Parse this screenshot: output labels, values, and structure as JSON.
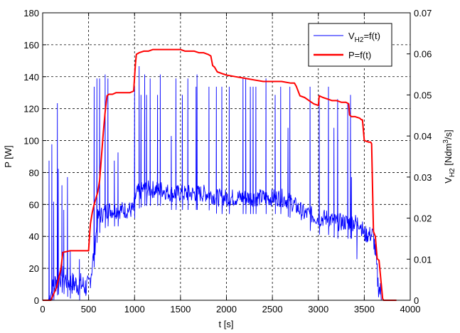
{
  "chart_data": {
    "type": "line",
    "title": "",
    "xlabel": "t [s]",
    "ylabel_left": "P [W]",
    "ylabel_right": {
      "prefix": "V",
      "sub": "H2",
      "mid": " [Ndm",
      "sup": "3",
      "suffix": "/s]"
    },
    "xlim": [
      0,
      4000
    ],
    "ylim_left": [
      0,
      180
    ],
    "ylim_right": [
      0,
      0.07
    ],
    "x_ticks": [
      "0",
      "500",
      "1000",
      "1500",
      "2000",
      "2500",
      "3000",
      "3500",
      "4000"
    ],
    "y_ticks_left": [
      "0",
      "20",
      "40",
      "60",
      "80",
      "100",
      "120",
      "140",
      "160",
      "180"
    ],
    "y_ticks_right": [
      "0",
      "0.01",
      "0.02",
      "0.03",
      "0.04",
      "0.05",
      "0.06",
      "0.07"
    ],
    "grid": true,
    "legend_position": "top-right",
    "legend": [
      {
        "label_main": "V",
        "label_sub": "H2",
        "label_tail": "=f(t)",
        "color": "#0000ff"
      },
      {
        "label_main": "P=f(t)",
        "label_sub": "",
        "label_tail": "",
        "color": "#ff0000"
      }
    ],
    "series": [
      {
        "name": "P=f(t)",
        "axis": "left",
        "color": "#ff0000",
        "x": [
          0,
          90,
          120,
          150,
          180,
          200,
          210,
          220,
          300,
          400,
          500,
          510,
          520,
          540,
          560,
          580,
          600,
          620,
          640,
          660,
          680,
          700,
          720,
          760,
          800,
          850,
          900,
          950,
          990,
          1000,
          1010,
          1020,
          1050,
          1100,
          1150,
          1200,
          1250,
          1300,
          1350,
          1400,
          1450,
          1500,
          1550,
          1600,
          1650,
          1700,
          1750,
          1800,
          1830,
          1850,
          1870,
          1900,
          1950,
          2000,
          2100,
          2200,
          2300,
          2400,
          2500,
          2600,
          2700,
          2740,
          2760,
          2800,
          2850,
          2900,
          2950,
          3000,
          3010,
          3050,
          3100,
          3150,
          3200,
          3250,
          3300,
          3330,
          3340,
          3360,
          3400,
          3450,
          3470,
          3480,
          3500,
          3550,
          3570,
          3580,
          3590,
          3600,
          3620,
          3640,
          3660,
          3700,
          3710,
          3720,
          3750,
          3800,
          3850
        ],
        "values": [
          0,
          0,
          4,
          8,
          15,
          20,
          25,
          30,
          31,
          31,
          31,
          40,
          48,
          55,
          60,
          64,
          68,
          75,
          90,
          105,
          118,
          128,
          129,
          129,
          130,
          130,
          130,
          130,
          131,
          140,
          148,
          154,
          155,
          156,
          156,
          157,
          157,
          157,
          157,
          157,
          157,
          157,
          156,
          156,
          156,
          155,
          155,
          154,
          153,
          147,
          146,
          143,
          142,
          141,
          140,
          139,
          138,
          137,
          137,
          137,
          136,
          136,
          134,
          128,
          127,
          125,
          123,
          122,
          128,
          127,
          126,
          125,
          125,
          124,
          124,
          123,
          116,
          115,
          115,
          114,
          113,
          113,
          100,
          99,
          99,
          98,
          70,
          43,
          40,
          26,
          25,
          1,
          0,
          0,
          0,
          0,
          0
        ]
      },
      {
        "name": "VH2=f(t)",
        "axis": "right",
        "color": "#0000ff",
        "spike_times": [
          70,
          100,
          120,
          160,
          170,
          210,
          230,
          270,
          300,
          400,
          560,
          590,
          620,
          680,
          710,
          780,
          820,
          1000,
          1050,
          1070,
          1110,
          1130,
          1170,
          1250,
          1280,
          1400,
          1450,
          1520,
          1580,
          1670,
          1680,
          1810,
          1890,
          1950,
          2030,
          2180,
          2210,
          2260,
          2290,
          2320,
          2430,
          2530,
          2590,
          2670,
          2690,
          2910,
          3010,
          3110,
          3170,
          3210,
          3320,
          3350,
          3360,
          3420
        ],
        "spike_values": [
          0.034,
          0.038,
          0.024,
          0.048,
          0.032,
          0.028,
          0.022,
          0.03,
          0.012,
          0.01,
          0.052,
          0.054,
          0.054,
          0.055,
          0.054,
          0.034,
          0.036,
          0.052,
          0.057,
          0.05,
          0.055,
          0.05,
          0.054,
          0.05,
          0.055,
          0.04,
          0.054,
          0.05,
          0.054,
          0.052,
          0.055,
          0.052,
          0.052,
          0.052,
          0.052,
          0.054,
          0.054,
          0.052,
          0.052,
          0.052,
          0.054,
          0.05,
          0.052,
          0.042,
          0.052,
          0.052,
          0.05,
          0.052,
          0.042,
          0.049,
          0.048,
          0.05,
          0.03,
          0.01
        ],
        "baseline_x": [
          0,
          60,
          150,
          200,
          260,
          330,
          400,
          500,
          550,
          600,
          700,
          800,
          900,
          950,
          990,
          1000,
          1020,
          1100,
          1200,
          1300,
          1400,
          1500,
          1600,
          1700,
          1800,
          1900,
          2000,
          2200,
          2400,
          2600,
          2700,
          2800,
          2850,
          2900,
          3000,
          3100,
          3200,
          3300,
          3400,
          3450,
          3500,
          3550,
          3600,
          3650,
          3700,
          3850
        ],
        "baseline_y": [
          0,
          0,
          0.005,
          0.006,
          0.005,
          0.004,
          0.004,
          0.003,
          0.01,
          0.02,
          0.022,
          0.022,
          0.022,
          0.022,
          0.022,
          0.024,
          0.026,
          0.027,
          0.027,
          0.027,
          0.026,
          0.026,
          0.026,
          0.026,
          0.026,
          0.025,
          0.025,
          0.025,
          0.025,
          0.025,
          0.024,
          0.022,
          0.021,
          0.021,
          0.02,
          0.02,
          0.019,
          0.019,
          0.019,
          0.019,
          0.016,
          0.016,
          0.016,
          0.004,
          0,
          0
        ]
      }
    ]
  }
}
